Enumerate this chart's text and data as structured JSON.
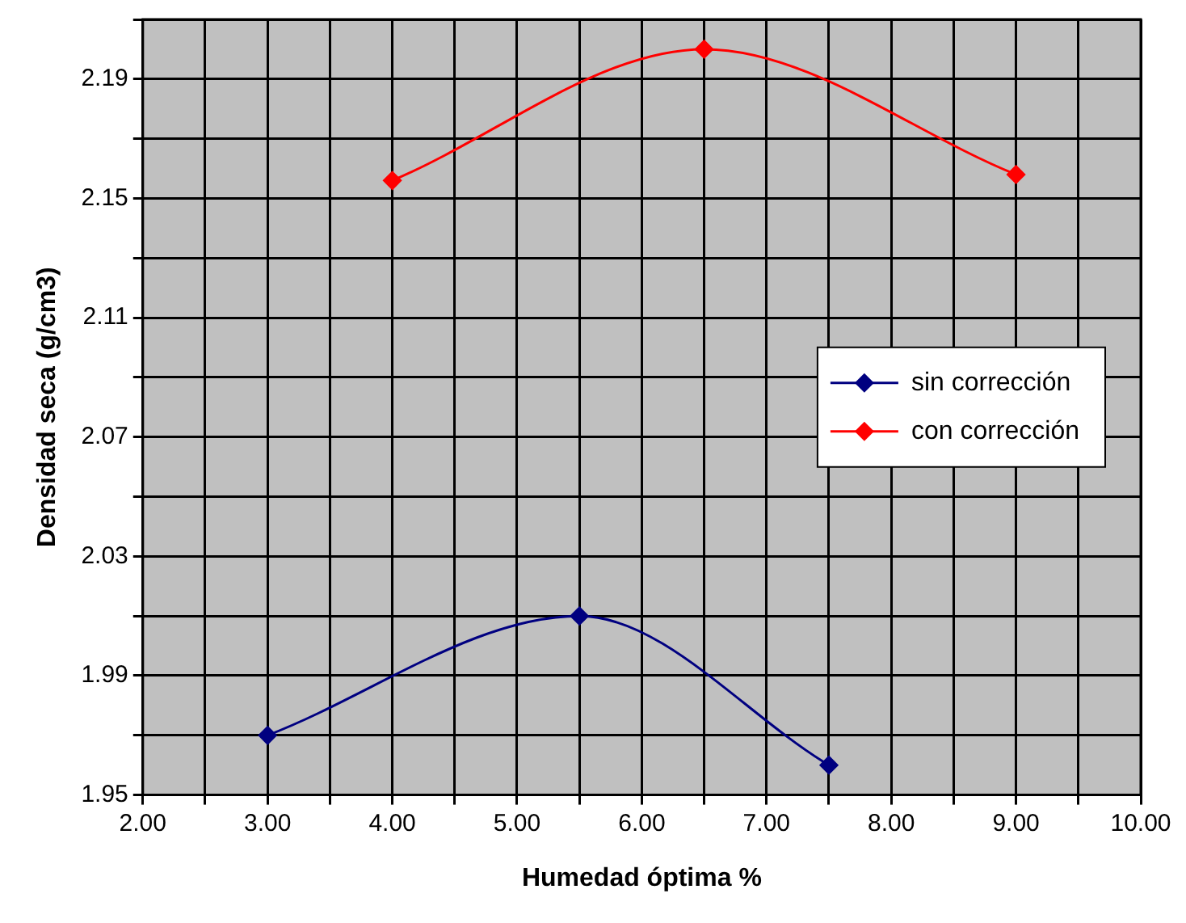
{
  "chart_data": {
    "type": "line",
    "xlabel": "Humedad óptima %",
    "ylabel": "Densidad seca (g/cm3)",
    "xlim": [
      2,
      10
    ],
    "ylim": [
      1.95,
      2.21
    ],
    "xticks": [
      {
        "value": 2,
        "label": "2.00"
      },
      {
        "value": 2.5,
        "label": null
      },
      {
        "value": 3,
        "label": "3.00"
      },
      {
        "value": 3.5,
        "label": null
      },
      {
        "value": 4,
        "label": "4.00"
      },
      {
        "value": 4.5,
        "label": null
      },
      {
        "value": 5,
        "label": "5.00"
      },
      {
        "value": 5.5,
        "label": null
      },
      {
        "value": 6,
        "label": "6.00"
      },
      {
        "value": 6.5,
        "label": null
      },
      {
        "value": 7,
        "label": "7.00"
      },
      {
        "value": 7.5,
        "label": null
      },
      {
        "value": 8,
        "label": "8.00"
      },
      {
        "value": 8.5,
        "label": null
      },
      {
        "value": 9,
        "label": "9.00"
      },
      {
        "value": 9.5,
        "label": null
      },
      {
        "value": 10,
        "label": "10.00"
      }
    ],
    "yticks": [
      1.95,
      {
        "value": 1.97,
        "label": null
      },
      1.99,
      {
        "value": 2.01,
        "label": null
      },
      2.03,
      {
        "value": 2.05,
        "label": null
      },
      2.07,
      {
        "value": 2.09,
        "label": null
      },
      2.11,
      {
        "value": 2.13,
        "label": null
      },
      2.15,
      {
        "value": 2.17,
        "label": null
      },
      2.19,
      {
        "value": 2.21,
        "label": null
      }
    ],
    "grid": true,
    "legend": "right",
    "marker": "diamond",
    "line_style": "solid",
    "series": [
      {
        "name": "sin corrección",
        "color": "#000080",
        "x": [
          3,
          5.5,
          7.5
        ],
        "values": [
          1.97,
          2.01,
          1.96
        ]
      },
      {
        "name": "con corrección",
        "color": "#ff0000",
        "x": [
          4,
          6.5,
          9
        ],
        "values": [
          2.156,
          2.2,
          2.158
        ]
      }
    ]
  }
}
